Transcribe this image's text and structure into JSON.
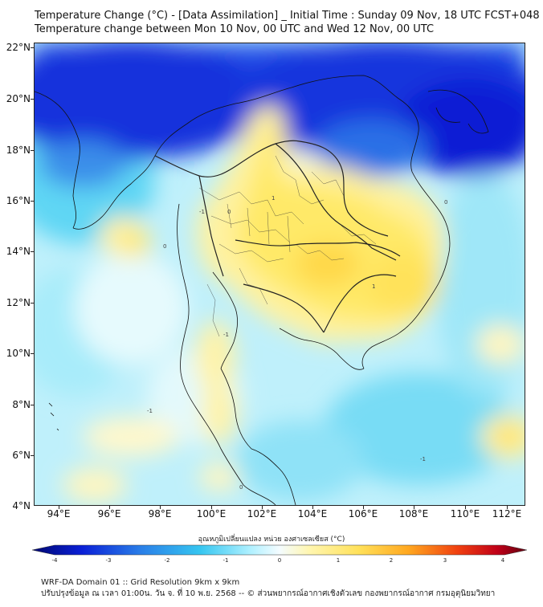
{
  "title": {
    "line1": "Temperature Change (°C) - [Data Assimilation] _ Initial Time : Sunday 09 Nov, 18 UTC FCST+048",
    "line2": "Temperature change between Mon 10 Nov, 00 UTC and Wed 12 Nov, 00 UTC"
  },
  "map": {
    "lat_labels": [
      "22°N",
      "20°N",
      "18°N",
      "16°N",
      "14°N",
      "12°N",
      "10°N",
      "8°N",
      "6°N",
      "4°N"
    ],
    "lon_labels": [
      "94°E",
      "96°E",
      "98°E",
      "100°E",
      "102°E",
      "104°E",
      "106°E",
      "108°E",
      "110°E",
      "112°E"
    ],
    "contour_labels": [
      "-1",
      "-1",
      "-1",
      "-1",
      "0",
      "0",
      "0",
      "0",
      "1",
      "1"
    ],
    "colors": {
      "strong_cool": "#0a1fd6",
      "cool": "#36c6f0",
      "light_cool": "#aef0ff",
      "neutral": "#e8fbff",
      "light_warm": "#fff6b0",
      "warm": "#ffe15a",
      "hot": "#ffc22e"
    }
  },
  "colorbar": {
    "title": "อุณหภูมิเปลี่ยนแปลง หน่วย องศาเซลเซียส (°C)",
    "ticks": [
      "-4",
      "-3",
      "-2",
      "-1",
      "0",
      "1",
      "2",
      "3",
      "4"
    ]
  },
  "footer": {
    "line1": "WRF-DA Domain 01 :: Grid Resolution 9km x 9km",
    "line2": "ปรับปรุงข้อมูล ณ เวลา 01:00น. วัน จ. ที่ 10 พ.ย. 2568 -- © ส่วนพยากรณ์อากาศเชิงตัวเลข กองพยากรณ์อากาศ กรมอุตุนิยมวิทยา"
  }
}
